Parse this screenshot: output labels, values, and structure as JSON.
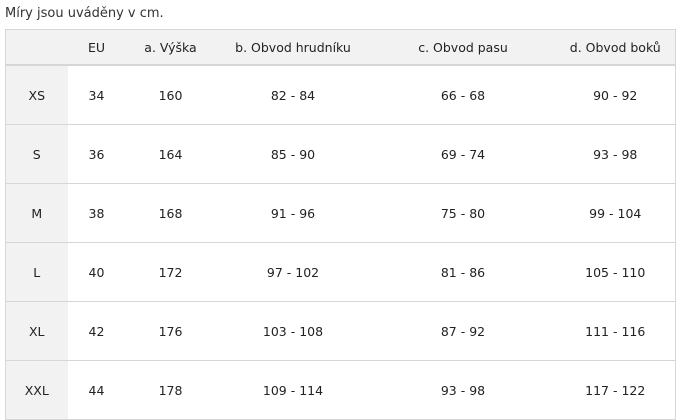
{
  "note": "Míry jsou uváděny v cm.",
  "headers": [
    "",
    "EU",
    "a. Výška",
    "b. Obvod hrudníku",
    "c. Obvod pasu",
    "d. Obvod boků"
  ],
  "rows": [
    [
      "XS",
      "34",
      "160",
      "82 - 84",
      "66 - 68",
      "90 - 92"
    ],
    [
      "S",
      "36",
      "164",
      "85 - 90",
      "69 - 74",
      "93 - 98"
    ],
    [
      "M",
      "38",
      "168",
      "91 - 96",
      "75 - 80",
      "99 - 104"
    ],
    [
      "L",
      "40",
      "172",
      "97 - 102",
      "81 - 86",
      "105 - 110"
    ],
    [
      "XL",
      "42",
      "176",
      "103 - 108",
      "87 - 92",
      "111 - 116"
    ],
    [
      "XXL",
      "44",
      "178",
      "109 - 114",
      "93 - 98",
      "117 - 122"
    ]
  ]
}
